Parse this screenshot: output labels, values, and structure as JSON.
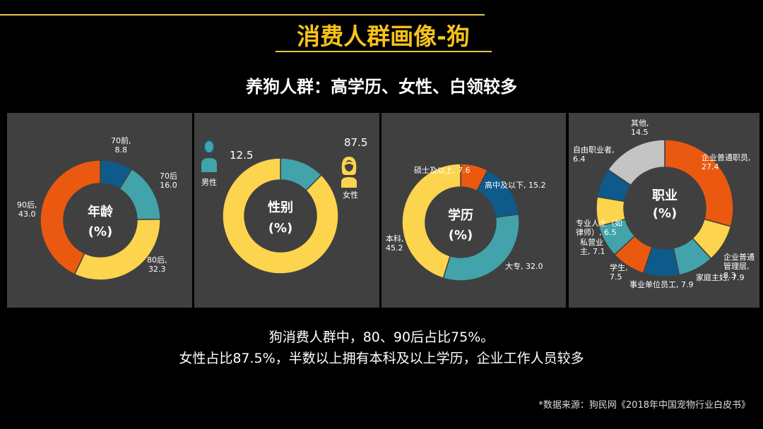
{
  "title": "消费人群画像-狗",
  "subtitle": "养狗人群：高学历、女性、白领较多",
  "notes": {
    "line1": "狗消费人群中，80、90后占比75%。",
    "line2": "女性占比87.5%，半数以上拥有本科及以上学历，企业工作人员较多"
  },
  "source": "*数据来源：狗民网《2018年中国宠物行业白皮书》",
  "icons": {
    "male": "male-person-icon",
    "female": "female-person-icon"
  },
  "colors": {
    "orange": "#eb5910",
    "blue": "#0e5a8a",
    "teal": "#42a3aa",
    "yellow": "#fdd44d",
    "gray": "#c4c4c4",
    "panel": "#404040",
    "gold": "#f6c31b"
  },
  "chart_data": [
    {
      "type": "pie",
      "name": "年龄",
      "title": "年龄",
      "unit": "(%)",
      "categories": [
        "70前",
        "70后",
        "80后",
        "90后"
      ],
      "values": [
        8.8,
        16.0,
        32.3,
        43.0
      ],
      "colors": [
        "#0e5a8a",
        "#42a3aa",
        "#fdd44d",
        "#eb5910"
      ],
      "labels": [
        "70前,\n8.8",
        "70后\n16.0",
        "80后,\n32.3",
        "90后,\n43.0"
      ]
    },
    {
      "type": "pie",
      "name": "性别",
      "title": "性别",
      "unit": "(%)",
      "categories": [
        "男性",
        "女性"
      ],
      "values": [
        12.5,
        87.5
      ],
      "colors": [
        "#42a3aa",
        "#fdd44d"
      ],
      "labels": [
        "男性",
        "女性"
      ],
      "value_labels": [
        "12.5",
        "87.5"
      ]
    },
    {
      "type": "pie",
      "name": "学历",
      "title": "学历",
      "unit": "(%)",
      "categories": [
        "硕士及以上",
        "高中及以下",
        "大专",
        "本科"
      ],
      "values": [
        7.6,
        15.2,
        32.0,
        45.2
      ],
      "colors": [
        "#eb5910",
        "#0e5a8a",
        "#42a3aa",
        "#fdd44d"
      ],
      "labels": [
        "硕士及以上, 7.6",
        "高中及以下, 15.2",
        "大专, 32.0",
        "本科,\n45.2"
      ]
    },
    {
      "type": "pie",
      "name": "职业",
      "title": "职业",
      "unit": "(%)",
      "categories": [
        "企业普通职员",
        "企业普通管理层",
        "家庭主妇",
        "事业单位员工",
        "学生",
        "私营业主",
        "专业人士（如律师）",
        "自由职业者",
        "其他"
      ],
      "values": [
        27.4,
        8.3,
        7.9,
        7.9,
        7.5,
        7.1,
        6.5,
        6.4,
        14.5
      ],
      "colors": [
        "#eb5910",
        "#fdd44d",
        "#42a3aa",
        "#0e5a8a",
        "#eb5910",
        "#42a3aa",
        "#fdd44d",
        "#0e5a8a",
        "#c4c4c4"
      ],
      "labels": [
        "企业普通职员,\n27.4",
        "企业普通\n管理层,\n8.3",
        "家庭主妇, 7.9",
        "事业单位员工, 7.9",
        "学生,\n7.5",
        "私营业\n主, 7.1",
        "专业人士（如\n律师）, 6.5",
        "自由职业者,\n6.4",
        "其他,\n14.5"
      ]
    }
  ]
}
